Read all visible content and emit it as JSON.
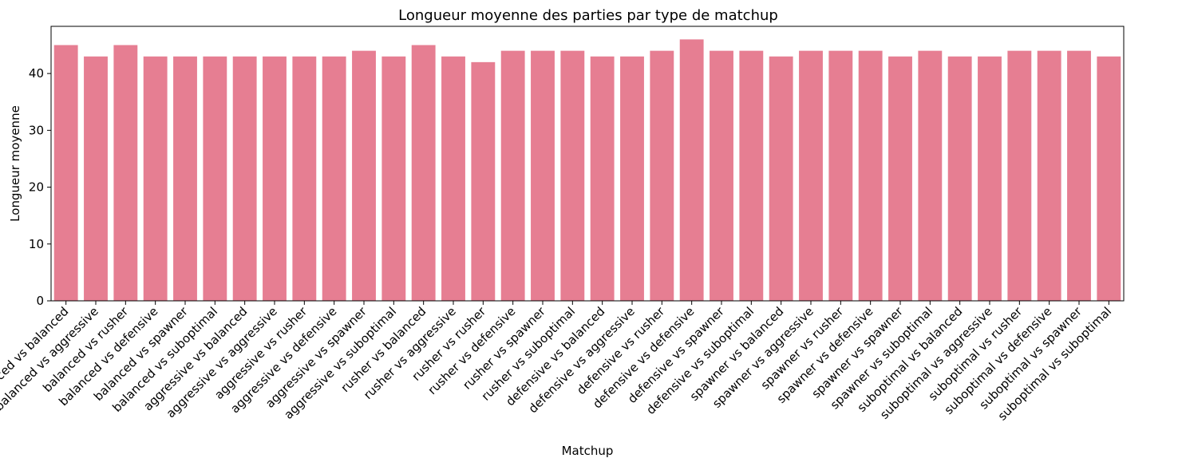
{
  "chart_data": {
    "type": "bar",
    "title": "Longueur moyenne des parties par type de matchup",
    "xlabel": "Matchup",
    "ylabel": "Longueur moyenne",
    "ylim": [
      0,
      48.3
    ],
    "yticks": [
      0,
      10,
      20,
      30,
      40
    ],
    "bar_color": "#e67e92",
    "categories": [
      "balanced vs balanced",
      "balanced vs aggressive",
      "balanced vs rusher",
      "balanced vs defensive",
      "balanced vs spawner",
      "balanced vs suboptimal",
      "aggressive vs balanced",
      "aggressive vs aggressive",
      "aggressive vs rusher",
      "aggressive vs defensive",
      "aggressive vs spawner",
      "aggressive vs suboptimal",
      "rusher vs balanced",
      "rusher vs aggressive",
      "rusher vs rusher",
      "rusher vs defensive",
      "rusher vs spawner",
      "rusher vs suboptimal",
      "defensive vs balanced",
      "defensive vs aggressive",
      "defensive vs rusher",
      "defensive vs defensive",
      "defensive vs spawner",
      "defensive vs suboptimal",
      "spawner vs balanced",
      "spawner vs aggressive",
      "spawner vs rusher",
      "spawner vs defensive",
      "spawner vs spawner",
      "spawner vs suboptimal",
      "suboptimal vs balanced",
      "suboptimal vs aggressive",
      "suboptimal vs rusher",
      "suboptimal vs defensive",
      "suboptimal vs spawner",
      "suboptimal vs suboptimal"
    ],
    "values": [
      45,
      43,
      45,
      43,
      43,
      43,
      43,
      43,
      43,
      43,
      44,
      43,
      45,
      43,
      42,
      44,
      44,
      44,
      43,
      43,
      44,
      46,
      44,
      44,
      43,
      44,
      44,
      44,
      43,
      44,
      43,
      43,
      44,
      44,
      44,
      43
    ]
  }
}
